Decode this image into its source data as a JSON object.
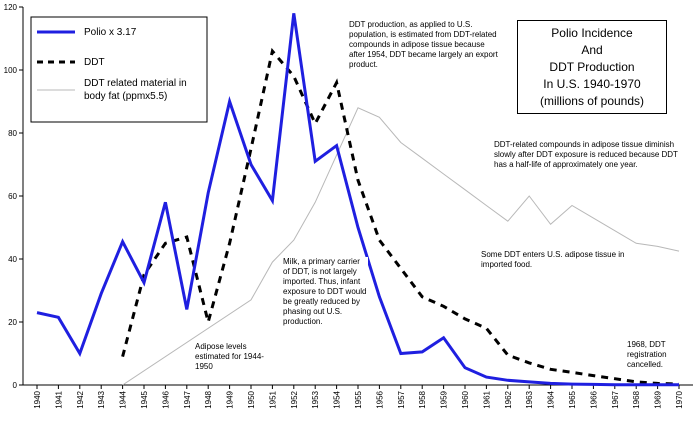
{
  "chart_data": {
    "type": "line",
    "title_lines": [
      "Polio Incidence",
      "And",
      "DDT Production",
      "In U.S. 1940-1970",
      "(millions of pounds)"
    ],
    "ylim": [
      0,
      120
    ],
    "y_ticks": [
      0,
      20,
      40,
      60,
      80,
      100,
      120
    ],
    "x_years": [
      "1940",
      "1941",
      "1942",
      "1943",
      "1944",
      "1945",
      "1946",
      "1947",
      "1948",
      "1949",
      "1950",
      "1951",
      "1952",
      "1953",
      "1954",
      "1955",
      "1956",
      "1957",
      "1958",
      "1959",
      "1960",
      "1961",
      "1962",
      "1963",
      "1964",
      "1965",
      "1966",
      "1967",
      "1968",
      "1969",
      "1970"
    ],
    "legend_position": "top-left",
    "series": [
      {
        "name": "Polio x 3.17",
        "style": "solid",
        "color": "#1f1fe0",
        "points": [
          [
            1940,
            23
          ],
          [
            1941,
            21.5
          ],
          [
            1942,
            10
          ],
          [
            1943,
            29
          ],
          [
            1944,
            45.5
          ],
          [
            1945,
            32.5
          ],
          [
            1946,
            58
          ],
          [
            1947,
            24
          ],
          [
            1948,
            61
          ],
          [
            1949,
            90
          ],
          [
            1950,
            70
          ],
          [
            1951,
            58.5
          ],
          [
            1952,
            118
          ],
          [
            1953,
            71
          ],
          [
            1954,
            76
          ],
          [
            1955,
            50
          ],
          [
            1956,
            28
          ],
          [
            1957,
            10
          ],
          [
            1958,
            10.5
          ],
          [
            1959,
            15
          ],
          [
            1960,
            5.5
          ],
          [
            1961,
            2.5
          ],
          [
            1962,
            1.5
          ],
          [
            1963,
            1
          ],
          [
            1964,
            0.5
          ],
          [
            1965,
            0.3
          ],
          [
            1966,
            0.2
          ],
          [
            1967,
            0.1
          ],
          [
            1968,
            0.1
          ],
          [
            1969,
            0.1
          ],
          [
            1970,
            0.1
          ]
        ]
      },
      {
        "name": "DDT",
        "style": "dashed",
        "color": "#000000",
        "points": [
          [
            1944,
            9
          ],
          [
            1945,
            35
          ],
          [
            1946,
            45
          ],
          [
            1947,
            47
          ],
          [
            1948,
            20
          ],
          [
            1949,
            45
          ],
          [
            1950,
            75
          ],
          [
            1951,
            106
          ],
          [
            1952,
            98
          ],
          [
            1953,
            83
          ],
          [
            1954,
            96
          ],
          [
            1955,
            65
          ],
          [
            1956,
            46
          ],
          [
            1957,
            37
          ],
          [
            1958,
            28
          ],
          [
            1959,
            25
          ],
          [
            1960,
            21
          ],
          [
            1961,
            18
          ],
          [
            1962,
            9.5
          ],
          [
            1963,
            7
          ],
          [
            1964,
            5
          ],
          [
            1965,
            4
          ],
          [
            1966,
            3
          ],
          [
            1967,
            2
          ],
          [
            1968,
            1
          ],
          [
            1969,
            0.5
          ],
          [
            1970,
            0.3
          ]
        ]
      },
      {
        "name": "DDT related material in body fat (ppmx5.5)",
        "style": "thin",
        "color": "#b8b8b8",
        "points": [
          [
            1944,
            0
          ],
          [
            1950,
            27
          ],
          [
            1951,
            39
          ],
          [
            1952,
            46
          ],
          [
            1953,
            58
          ],
          [
            1954,
            73
          ],
          [
            1955,
            88
          ],
          [
            1956,
            85
          ],
          [
            1957,
            77
          ],
          [
            1958,
            72
          ],
          [
            1959,
            67
          ],
          [
            1960,
            62
          ],
          [
            1961,
            57
          ],
          [
            1962,
            52
          ],
          [
            1963,
            60
          ],
          [
            1964,
            51
          ],
          [
            1965,
            57
          ],
          [
            1966,
            53
          ],
          [
            1967,
            49
          ],
          [
            1968,
            45
          ],
          [
            1969,
            44
          ],
          [
            1970,
            42.5
          ]
        ]
      }
    ],
    "annotations": {
      "ddt_production": "DDT production, as applied to U.S. population, is estimated from DDT-related compounds in adipose tissue because after 1954, DDT became largely an export product.",
      "half_life": "DDT-related compounds in adipose tissue diminish slowly after DDT exposure is reduced because DDT has a half-life of approximately one year.",
      "imported_food": "Some DDT enters U.S. adipose tissue in imported food.",
      "milk": "Milk, a primary carrier of DDT, is not largely imported. Thus, infant exposure to DDT would be greatly reduced by phasing out U.S. production.",
      "adipose_levels": "Adipose levels estimated for 1944-1950",
      "registration": "1968, DDT registration cancelled."
    }
  }
}
